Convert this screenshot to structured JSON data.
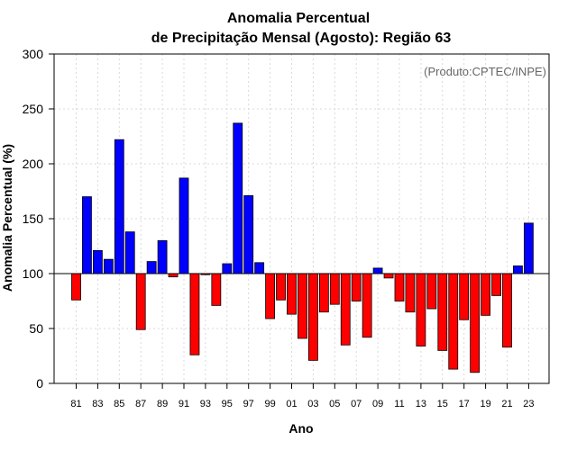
{
  "chart_data": {
    "type": "bar",
    "title_line1": "Anomalia Percentual",
    "title_line2": "de Precipitação Mensal (Agosto): Região 63",
    "xlabel": "Ano",
    "ylabel": "Anomalia Percentual (%)",
    "annotation": "(Produto:CPTEC/INPE)",
    "baseline": 100,
    "ylim": [
      0,
      300
    ],
    "yticks": [
      "0",
      "50",
      "100",
      "150",
      "200",
      "250",
      "300"
    ],
    "grid": true,
    "colors": {
      "above": "#0000ff",
      "below": "#ff0000"
    },
    "categories": [
      "81",
      "82",
      "83",
      "84",
      "85",
      "86",
      "87",
      "88",
      "89",
      "90",
      "91",
      "92",
      "93",
      "94",
      "95",
      "96",
      "97",
      "98",
      "99",
      "00",
      "01",
      "02",
      "03",
      "04",
      "05",
      "06",
      "07",
      "08",
      "09",
      "10",
      "11",
      "12",
      "13",
      "14",
      "15",
      "16",
      "17",
      "18",
      "19",
      "20",
      "21",
      "22",
      "23"
    ],
    "xtick_labels": [
      "81",
      "83",
      "85",
      "87",
      "89",
      "91",
      "93",
      "95",
      "97",
      "99",
      "01",
      "03",
      "05",
      "07",
      "09",
      "11",
      "13",
      "15",
      "17",
      "19",
      "21",
      "23"
    ],
    "values": [
      76,
      170,
      121,
      113,
      222,
      138,
      49,
      111,
      130,
      97,
      187,
      26,
      99,
      71,
      109,
      237,
      171,
      110,
      59,
      76,
      63,
      41,
      21,
      65,
      72,
      35,
      75,
      42,
      105,
      96,
      75,
      65,
      34,
      68,
      30,
      13,
      58,
      10,
      62,
      80,
      33,
      107,
      146
    ]
  }
}
